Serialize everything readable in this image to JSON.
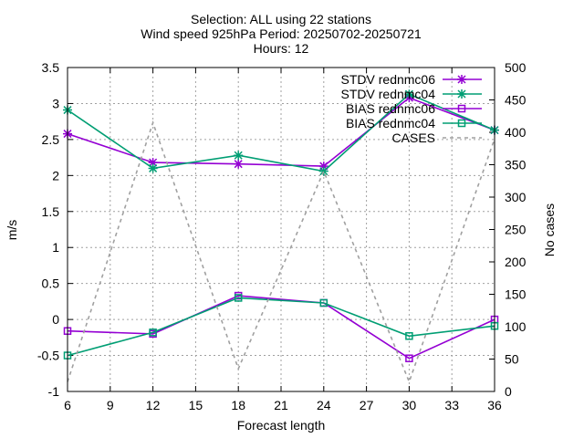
{
  "chart_data": {
    "type": "line",
    "title_lines": [
      "Selection: ALL using    22 stations",
      "Wind speed 925hPa   Period: 20250702-20250721",
      "Hours: 12"
    ],
    "xlabel": "Forecast length",
    "ylabel": "m/s",
    "y2label": "No cases",
    "xlim": [
      6,
      36
    ],
    "ylim": [
      -1,
      3.5
    ],
    "y2lim": [
      0,
      500
    ],
    "x_ticks": [
      "6",
      "9",
      "12",
      "15",
      "18",
      "21",
      "24",
      "27",
      "30",
      "33",
      "36"
    ],
    "y_ticks": [
      "-1",
      "-0.5",
      "0",
      "0.5",
      "1",
      "1.5",
      "2",
      "2.5",
      "3",
      "3.5"
    ],
    "y2_ticks": [
      "0",
      "50",
      "100",
      "150",
      "200",
      "250",
      "300",
      "350",
      "400",
      "450",
      "500"
    ],
    "grid": true,
    "legend_position": "top-right",
    "x": [
      6,
      12,
      18,
      24,
      30,
      36
    ],
    "series": [
      {
        "name": "STDV rednmc06",
        "color": "#9400d3",
        "marker": "x",
        "axis": "y",
        "values": [
          2.58,
          2.18,
          2.16,
          2.13,
          3.08,
          2.63
        ]
      },
      {
        "name": "STDV rednmc04",
        "color": "#009e73",
        "marker": "x",
        "axis": "y",
        "values": [
          2.91,
          2.1,
          2.28,
          2.06,
          3.13,
          2.63
        ]
      },
      {
        "name": "BIAS rednmc06",
        "color": "#9400d3",
        "marker": "square",
        "axis": "y",
        "values": [
          -0.16,
          -0.2,
          0.33,
          0.23,
          -0.54,
          0.0
        ]
      },
      {
        "name": "BIAS rednmc04",
        "color": "#009e73",
        "marker": "square",
        "axis": "y",
        "values": [
          -0.5,
          -0.18,
          0.3,
          0.23,
          -0.23,
          -0.09
        ]
      },
      {
        "name": "CASES",
        "color": "#a0a0a0",
        "marker": "none",
        "dash": true,
        "axis": "y2",
        "values": [
          15,
          415,
          35,
          340,
          15,
          390
        ]
      }
    ]
  }
}
